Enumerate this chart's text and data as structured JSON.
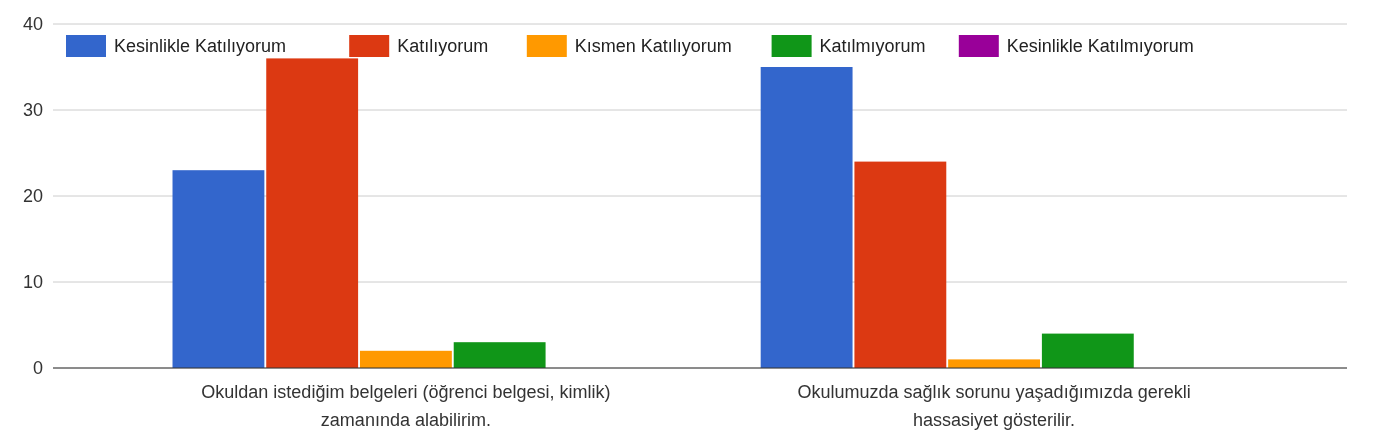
{
  "chart_data": {
    "type": "bar",
    "categories": [
      "Okuldan istediğim belgeleri (öğrenci belgesi, kimlik) zamanında alabilirim.",
      "Okulumuzda sağlık sorunu yaşadığımızda gerekli hassasiyet gösterilir."
    ],
    "series": [
      {
        "name": "Kesinlikle Katılıyorum",
        "color": "#3366cc",
        "values": [
          23,
          35
        ]
      },
      {
        "name": "Katılıyorum",
        "color": "#dc3912",
        "values": [
          36,
          24
        ]
      },
      {
        "name": "Kısmen Katılıyorum",
        "color": "#ff9900",
        "values": [
          2,
          1
        ]
      },
      {
        "name": "Katılmıyorum",
        "color": "#109618",
        "values": [
          3,
          4
        ]
      },
      {
        "name": "Kesinlikle Katılmıyorum",
        "color": "#990099",
        "values": [
          0,
          0
        ]
      }
    ],
    "ylim": [
      0,
      40
    ],
    "yticks": [
      0,
      10,
      20,
      30,
      40
    ],
    "grid": true,
    "legend": "top"
  }
}
